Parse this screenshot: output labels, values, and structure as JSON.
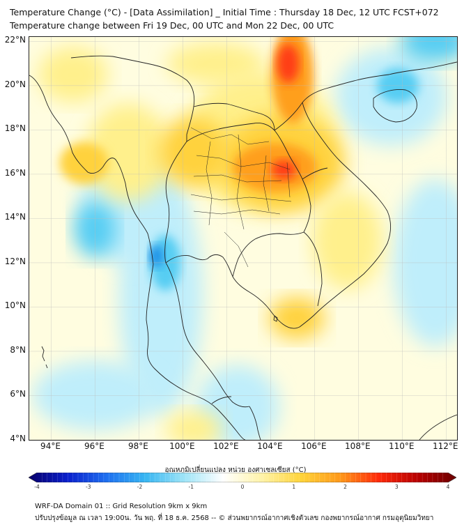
{
  "title_line1": "Temperature Change (°C) - [Data Assimilation] _ Initial Time : Thursday 18 Dec, 12 UTC FCST+072",
  "title_line2": "Temperature change between Fri 19 Dec, 00 UTC and Mon 22 Dec, 00 UTC",
  "lat_labels": [
    "22°N",
    "20°N",
    "18°N",
    "16°N",
    "14°N",
    "12°N",
    "10°N",
    "8°N",
    "6°N",
    "4°N"
  ],
  "lon_labels": [
    "94°E",
    "96°E",
    "98°E",
    "100°E",
    "102°E",
    "104°E",
    "106°E",
    "108°E",
    "110°E",
    "112°E"
  ],
  "colorbar": {
    "title": "อุณหภูมิเปลี่ยนแปลง หน่วย องศาเซลเซียส (°C)",
    "ticks": [
      "-4",
      "-3",
      "-2",
      "-1",
      "0",
      "1",
      "2",
      "3",
      "4"
    ],
    "min": -4,
    "max": 4,
    "colors": [
      "#08006b",
      "#0a1fcc",
      "#1e6ff0",
      "#37b6f2",
      "#9ee4f7",
      "#ffffff",
      "#fff3a8",
      "#ffd43a",
      "#ff9a1a",
      "#ff2a0a",
      "#b80000",
      "#6b0000"
    ]
  },
  "footer_line1": "WRF-DA Domain 01 :: Grid Resolution 9km x 9km",
  "footer_line2": "ปรับปรุงข้อมูล ณ เวลา 19:00น. วัน พฤ. ที่ 18 ธ.ค. 2568 -- © ส่วนพยากรณ์อากาศเชิงตัวเลข กองพยากรณ์อากาศ กรมอุตุนิยมวิทยา",
  "map": {
    "lon_range": [
      93,
      112.5
    ],
    "lat_range": [
      4,
      22.2
    ],
    "grid": true,
    "field_colors": {
      "strong_warm": "#ff3c14",
      "warm": "#ff9f1e",
      "mild_warm": "#ffd23c",
      "slight_warm": "#fff08c",
      "neutral": "#fffde0",
      "slight_cool": "#bfeefb",
      "cool": "#57cdf3",
      "strong_cool": "#1e8ee6"
    }
  }
}
